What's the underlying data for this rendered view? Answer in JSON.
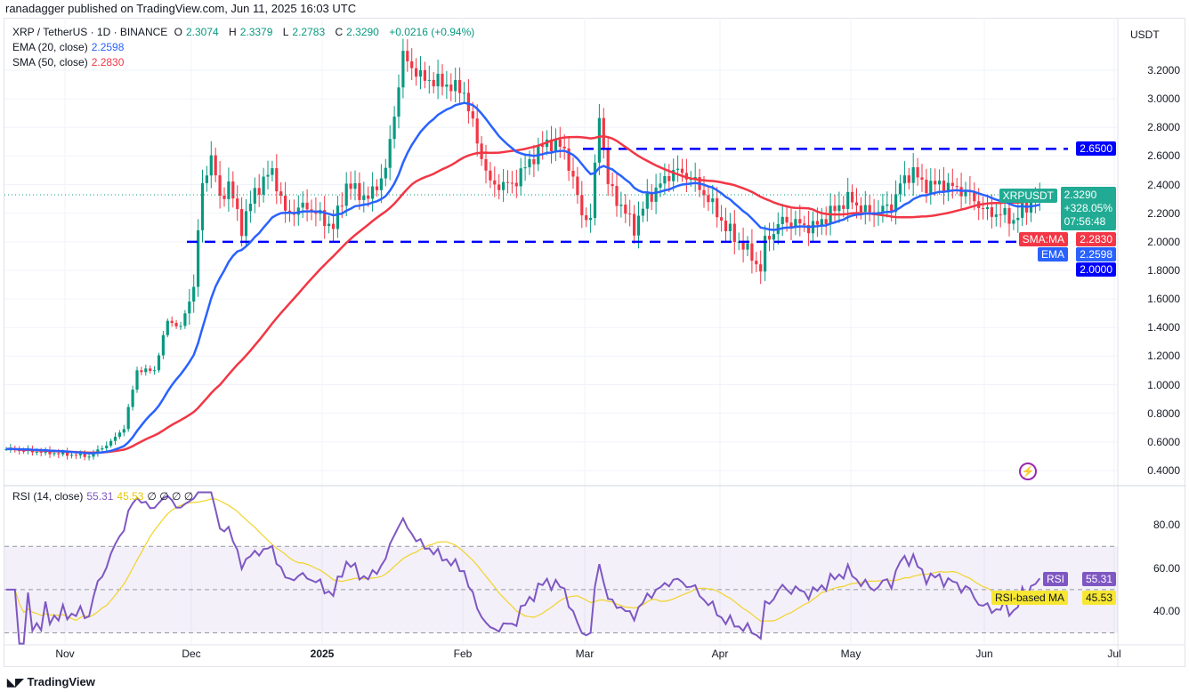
{
  "published": "ranadagger published on TradingView.com, Jun 11, 2025 16:03 UTC",
  "symbol": {
    "title": "XRP / TetherUS · 1D · BINANCE",
    "o_label": "O",
    "o": "2.3074",
    "h_label": "H",
    "h": "2.3379",
    "l_label": "L",
    "l": "2.2783",
    "c_label": "C",
    "c": "2.3290",
    "change": "+0.0216 (+0.94%)"
  },
  "indicators": {
    "ema_label": "EMA (20, close)",
    "ema_value": "2.2598",
    "sma_label": "SMA (50, close)",
    "sma_value": "2.2830",
    "rsi_label": "RSI (14, close)",
    "rsi_value": "55.31",
    "rsi_ma_value": "45.53",
    "rsi_extra": "∅ ∅ ∅ ∅"
  },
  "currency": "USDT",
  "price_axis": [
    "3.2000",
    "3.0000",
    "2.8000",
    "2.6000",
    "2.4000",
    "2.2000",
    "2.0000",
    "1.8000",
    "1.6000",
    "1.4000",
    "1.2000",
    "1.0000",
    "0.8000",
    "0.6000",
    "0.4000"
  ],
  "rsi_axis": [
    "80.00",
    "60.00",
    "40.00"
  ],
  "time_axis": [
    "Nov",
    "Dec",
    "2025",
    "Feb",
    "Mar",
    "Apr",
    "May",
    "Jun",
    "Jul"
  ],
  "tags": {
    "symbol": "XRPUSDT",
    "price": "2.3290",
    "pct": "+328.05%",
    "countdown": "07:56:48",
    "sma_name": "SMA:MA",
    "sma": "2.2830",
    "ema_name": "EMA",
    "ema": "2.2598",
    "level_low": "2.0000",
    "level_high": "2.6500",
    "rsi_name": "RSI",
    "rsi": "55.31",
    "rsi_ma_name": "RSI-based MA",
    "rsi_ma": "45.53"
  },
  "footer": "TradingView",
  "colors": {
    "up": "#089981",
    "down": "#f23645",
    "ema": "#2962ff",
    "sma": "#f23645",
    "rsi": "#7e57c2",
    "rsi_ma": "#f2d32a",
    "level": "#0000ff"
  },
  "chart_data": {
    "type": "candlestick",
    "start_date": "2024-10-17",
    "keypoints": [
      [
        0,
        0.55
      ],
      [
        15,
        0.51
      ],
      [
        19,
        0.5
      ],
      [
        24,
        0.6
      ],
      [
        27,
        0.7
      ],
      [
        30,
        1.1
      ],
      [
        34,
        1.1
      ],
      [
        37,
        1.45
      ],
      [
        40,
        1.4
      ],
      [
        43,
        1.7
      ],
      [
        45,
        2.4
      ],
      [
        47,
        2.6
      ],
      [
        49,
        2.3
      ],
      [
        51,
        2.4
      ],
      [
        54,
        2.1
      ],
      [
        57,
        2.35
      ],
      [
        61,
        2.5
      ],
      [
        64,
        2.2
      ],
      [
        69,
        2.25
      ],
      [
        75,
        2.1
      ],
      [
        78,
        2.4
      ],
      [
        83,
        2.3
      ],
      [
        87,
        2.5
      ],
      [
        90,
        3.1
      ],
      [
        91,
        3.3
      ],
      [
        95,
        3.15
      ],
      [
        101,
        3.1
      ],
      [
        105,
        3.05
      ],
      [
        108,
        2.7
      ],
      [
        111,
        2.4
      ],
      [
        116,
        2.4
      ],
      [
        121,
        2.6
      ],
      [
        124,
        2.7
      ],
      [
        128,
        2.65
      ],
      [
        132,
        2.2
      ],
      [
        134,
        2.15
      ],
      [
        136,
        2.9
      ],
      [
        138,
        2.4
      ],
      [
        142,
        2.2
      ],
      [
        144,
        2.1
      ],
      [
        147,
        2.3
      ],
      [
        153,
        2.5
      ],
      [
        157,
        2.45
      ],
      [
        161,
        2.3
      ],
      [
        165,
        2.1
      ],
      [
        171,
        1.9
      ],
      [
        173,
        1.8
      ],
      [
        174,
        2.0
      ],
      [
        178,
        2.15
      ],
      [
        185,
        2.1
      ],
      [
        189,
        2.2
      ],
      [
        193,
        2.3
      ],
      [
        198,
        2.2
      ],
      [
        203,
        2.25
      ],
      [
        205,
        2.4
      ],
      [
        208,
        2.5
      ],
      [
        210,
        2.4
      ],
      [
        215,
        2.4
      ],
      [
        220,
        2.35
      ],
      [
        225,
        2.2
      ],
      [
        228,
        2.2
      ],
      [
        231,
        2.15
      ],
      [
        234,
        2.25
      ],
      [
        237,
        2.329
      ]
    ],
    "levels": [
      2.65,
      2.0
    ],
    "ylim": [
      0.4,
      3.2
    ],
    "ema_period": 20,
    "sma_period": 50,
    "rsi_period": 14,
    "rsi_ma_period": 14,
    "rsi_levels": [
      70,
      50,
      30
    ]
  }
}
